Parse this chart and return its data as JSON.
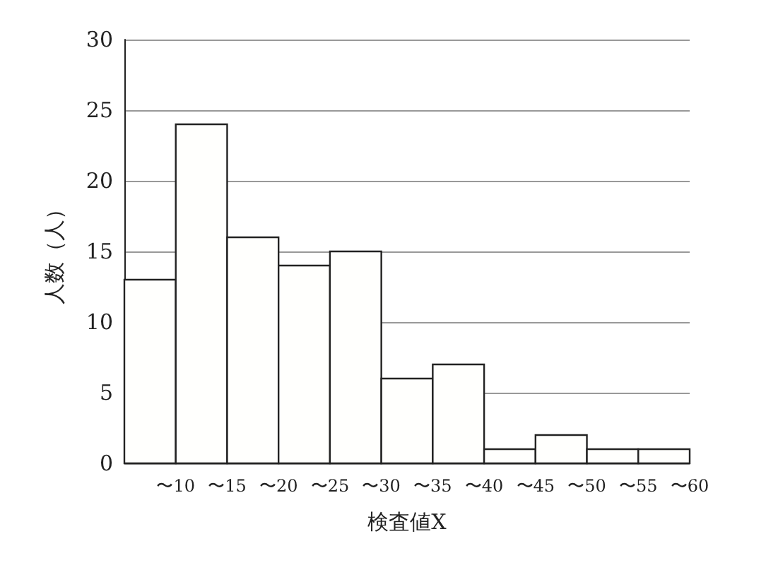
{
  "chart_data": {
    "type": "histogram",
    "xlabel": "検査値X",
    "ylabel": "人数（人）",
    "bins": [
      5,
      10,
      15,
      20,
      25,
      30,
      35,
      40,
      45,
      50,
      55,
      60
    ],
    "values": [
      13,
      24,
      16,
      14,
      15,
      6,
      7,
      1,
      2,
      1,
      1
    ],
    "color": "#fffffd",
    "xlim": [
      5,
      60
    ],
    "xticks": [
      {
        "value": 10,
        "label": "〜10"
      },
      {
        "value": 15,
        "label": "〜15"
      },
      {
        "value": 20,
        "label": "〜20"
      },
      {
        "value": 25,
        "label": "〜25"
      },
      {
        "value": 30,
        "label": "〜30"
      },
      {
        "value": 35,
        "label": "〜35"
      },
      {
        "value": 40,
        "label": "〜40"
      },
      {
        "value": 45,
        "label": "〜45"
      },
      {
        "value": 50,
        "label": "〜50"
      },
      {
        "value": 55,
        "label": "〜55"
      },
      {
        "value": 60,
        "label": "〜60"
      }
    ],
    "ylim": [
      0,
      30
    ],
    "yticks": [
      0,
      5,
      10,
      15,
      20,
      25,
      30
    ],
    "grid": "y"
  }
}
